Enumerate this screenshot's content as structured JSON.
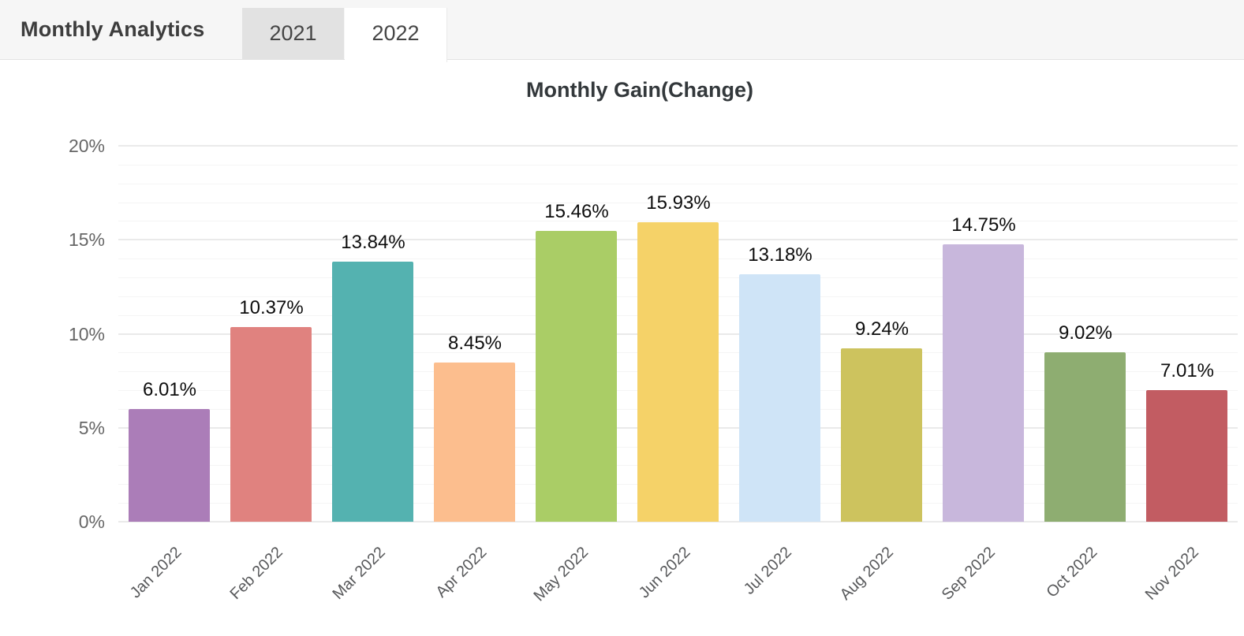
{
  "header": {
    "title": "Monthly Analytics",
    "tabs": [
      {
        "label": "2021",
        "active": false
      },
      {
        "label": "2022",
        "active": true
      }
    ]
  },
  "chart_data": {
    "type": "bar",
    "title": "Monthly Gain(Change)",
    "categories": [
      "Jan 2022",
      "Feb 2022",
      "Mar 2022",
      "Apr 2022",
      "May 2022",
      "Jun 2022",
      "Jul 2022",
      "Aug 2022",
      "Sep 2022",
      "Oct 2022",
      "Nov 2022"
    ],
    "values": [
      6.01,
      10.37,
      13.84,
      8.45,
      15.46,
      15.93,
      13.18,
      9.24,
      14.75,
      9.02,
      7.01
    ],
    "data_labels": [
      "6.01%",
      "10.37%",
      "13.84%",
      "8.45%",
      "15.46%",
      "15.93%",
      "13.18%",
      "9.24%",
      "14.75%",
      "9.02%",
      "7.01%"
    ],
    "bar_colors": [
      "#ab7db8",
      "#e0827f",
      "#54b2b0",
      "#fcbe8e",
      "#aacd66",
      "#f5d268",
      "#cfe4f7",
      "#cdc35e",
      "#c8b7dc",
      "#8ead71",
      "#c25c62"
    ],
    "y_tick_labels": [
      "0%",
      "5%",
      "10%",
      "15%",
      "20%"
    ],
    "y_tick_values": [
      0,
      5,
      10,
      15,
      20
    ],
    "ylim": [
      0,
      20
    ],
    "grid": {
      "major_step": 5,
      "minor_step": 1,
      "minor_on": true
    },
    "legend": "none",
    "colors": {
      "axis_label": "#666666",
      "category_label": "#58595b",
      "data_label": "#0d0d0d"
    }
  }
}
